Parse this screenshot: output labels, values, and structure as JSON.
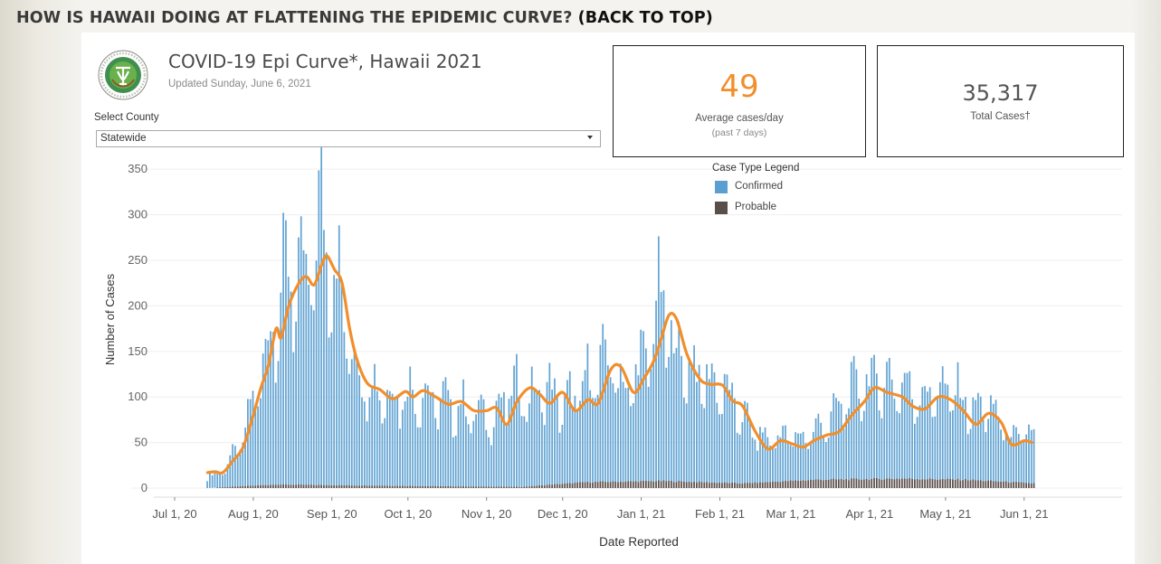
{
  "page": {
    "heading": "HOW IS HAWAII DOING AT FLATTENING THE EPIDEMIC CURVE?",
    "back_link": "(BACK TO TOP)"
  },
  "header": {
    "title": "COVID-19 Epi Curve*, Hawaii 2021",
    "updated": "Updated Sunday, June 6, 2021",
    "logo_text": "HAWAII STATE DEPARTMENT OF HEALTH"
  },
  "filter": {
    "label": "Select County",
    "selected": "Statewide"
  },
  "kpis": {
    "avg_value": "49",
    "avg_label": "Average cases/day",
    "avg_sub": "(past 7 days)",
    "total_value": "35,317",
    "total_label": "Total Cases†"
  },
  "colors": {
    "confirmed": "#5b9fd1",
    "probable": "#5a4e4b",
    "average_line": "#f28e2b",
    "avg_value": "#f28e2b"
  },
  "chart_data": {
    "type": "bar",
    "xlabel": "Date Reported",
    "ylabel": "Number of Cases",
    "x_ticks": [
      "Jul 1, 20",
      "Aug 1, 20",
      "Sep 1, 20",
      "Oct 1, 20",
      "Nov 1, 20",
      "Dec 1, 20",
      "Jan 1, 21",
      "Feb 1, 21",
      "Mar 1, 21",
      "Apr 1, 21",
      "May 1, 21",
      "Jun 1, 21"
    ],
    "y_ticks": [
      0,
      50,
      100,
      150,
      200,
      250,
      300,
      350
    ],
    "ylim": [
      0,
      370
    ],
    "x_range": [
      "2020-06-26",
      "2021-06-20"
    ],
    "legend": {
      "title": "Case Type Legend",
      "items": [
        "Confirmed",
        "Probable"
      ],
      "position": "top-center"
    },
    "series": [
      {
        "name": "Confirmed",
        "kind": "bar",
        "stacked": true,
        "anchors": [
          [
            "2020-07-14",
            12
          ],
          [
            "2020-07-20",
            18
          ],
          [
            "2020-07-26",
            40
          ],
          [
            "2020-07-30",
            70
          ],
          [
            "2020-08-03",
            110
          ],
          [
            "2020-08-07",
            150
          ],
          [
            "2020-08-10",
            190
          ],
          [
            "2020-08-13",
            215
          ],
          [
            "2020-08-16",
            230
          ],
          [
            "2020-08-19",
            220
          ],
          [
            "2020-08-22",
            210
          ],
          [
            "2020-08-25",
            250
          ],
          [
            "2020-08-28",
            285
          ],
          [
            "2020-09-01",
            250
          ],
          [
            "2020-09-04",
            210
          ],
          [
            "2020-09-07",
            170
          ],
          [
            "2020-09-10",
            135
          ],
          [
            "2020-09-15",
            110
          ],
          [
            "2020-09-22",
            100
          ],
          [
            "2020-09-30",
            100
          ],
          [
            "2020-10-10",
            95
          ],
          [
            "2020-10-20",
            85
          ],
          [
            "2020-10-28",
            80
          ],
          [
            "2020-11-03",
            70
          ],
          [
            "2020-11-10",
            105
          ],
          [
            "2020-11-15",
            100
          ],
          [
            "2020-11-20",
            95
          ],
          [
            "2020-11-25",
            105
          ],
          [
            "2020-12-01",
            85
          ],
          [
            "2020-12-05",
            90
          ],
          [
            "2020-12-10",
            105
          ],
          [
            "2020-12-16",
            125
          ],
          [
            "2020-12-21",
            130
          ],
          [
            "2020-12-26",
            95
          ],
          [
            "2020-12-31",
            120
          ],
          [
            "2021-01-05",
            150
          ],
          [
            "2021-01-09",
            200
          ],
          [
            "2021-01-13",
            150
          ],
          [
            "2021-01-18",
            130
          ],
          [
            "2021-01-24",
            115
          ],
          [
            "2021-01-28",
            110
          ],
          [
            "2021-02-03",
            100
          ],
          [
            "2021-02-09",
            75
          ],
          [
            "2021-02-15",
            55
          ],
          [
            "2021-02-20",
            45
          ],
          [
            "2021-02-26",
            50
          ],
          [
            "2021-03-05",
            45
          ],
          [
            "2021-03-12",
            55
          ],
          [
            "2021-03-17",
            65
          ],
          [
            "2021-03-24",
            90
          ],
          [
            "2021-03-31",
            105
          ],
          [
            "2021-04-07",
            105
          ],
          [
            "2021-04-14",
            100
          ],
          [
            "2021-04-21",
            90
          ],
          [
            "2021-04-28",
            95
          ],
          [
            "2021-05-05",
            95
          ],
          [
            "2021-05-12",
            75
          ],
          [
            "2021-05-18",
            80
          ],
          [
            "2021-05-24",
            60
          ],
          [
            "2021-05-28",
            45
          ],
          [
            "2021-06-01",
            55
          ],
          [
            "2021-06-05",
            50
          ]
        ]
      },
      {
        "name": "Probable",
        "kind": "bar",
        "stacked": true,
        "anchors": [
          [
            "2020-07-14",
            0
          ],
          [
            "2020-08-10",
            3
          ],
          [
            "2020-09-20",
            2
          ],
          [
            "2020-11-15",
            1
          ],
          [
            "2020-12-10",
            5
          ],
          [
            "2021-01-10",
            6
          ],
          [
            "2021-02-10",
            4
          ],
          [
            "2021-03-10",
            7
          ],
          [
            "2021-04-15",
            8
          ],
          [
            "2021-05-10",
            7
          ],
          [
            "2021-06-05",
            4
          ]
        ]
      },
      {
        "name": "7-day average",
        "kind": "line",
        "points": [
          [
            "2020-07-14",
            17
          ],
          [
            "2020-07-17",
            18
          ],
          [
            "2020-07-20",
            17
          ],
          [
            "2020-07-24",
            30
          ],
          [
            "2020-07-28",
            45
          ],
          [
            "2020-08-01",
            80
          ],
          [
            "2020-08-04",
            110
          ],
          [
            "2020-08-07",
            135
          ],
          [
            "2020-08-10",
            175
          ],
          [
            "2020-08-12",
            165
          ],
          [
            "2020-08-15",
            200
          ],
          [
            "2020-08-19",
            225
          ],
          [
            "2020-08-22",
            232
          ],
          [
            "2020-08-25",
            223
          ],
          [
            "2020-08-28",
            245
          ],
          [
            "2020-08-30",
            255
          ],
          [
            "2020-09-02",
            240
          ],
          [
            "2020-09-05",
            225
          ],
          [
            "2020-09-08",
            175
          ],
          [
            "2020-09-11",
            140
          ],
          [
            "2020-09-15",
            115
          ],
          [
            "2020-09-20",
            108
          ],
          [
            "2020-09-25",
            98
          ],
          [
            "2020-09-30",
            106
          ],
          [
            "2020-10-03",
            100
          ],
          [
            "2020-10-07",
            107
          ],
          [
            "2020-10-12",
            100
          ],
          [
            "2020-10-17",
            92
          ],
          [
            "2020-10-22",
            95
          ],
          [
            "2020-10-27",
            85
          ],
          [
            "2020-11-01",
            85
          ],
          [
            "2020-11-05",
            88
          ],
          [
            "2020-11-09",
            70
          ],
          [
            "2020-11-13",
            95
          ],
          [
            "2020-11-18",
            110
          ],
          [
            "2020-11-22",
            103
          ],
          [
            "2020-11-26",
            93
          ],
          [
            "2020-12-01",
            105
          ],
          [
            "2020-12-06",
            85
          ],
          [
            "2020-12-11",
            97
          ],
          [
            "2020-12-15",
            93
          ],
          [
            "2020-12-20",
            130
          ],
          [
            "2020-12-24",
            133
          ],
          [
            "2020-12-29",
            105
          ],
          [
            "2021-01-02",
            120
          ],
          [
            "2021-01-06",
            140
          ],
          [
            "2021-01-09",
            165
          ],
          [
            "2021-01-12",
            190
          ],
          [
            "2021-01-15",
            185
          ],
          [
            "2021-01-19",
            147
          ],
          [
            "2021-01-24",
            120
          ],
          [
            "2021-01-28",
            114
          ],
          [
            "2021-02-02",
            113
          ],
          [
            "2021-02-06",
            96
          ],
          [
            "2021-02-10",
            90
          ],
          [
            "2021-02-15",
            62
          ],
          [
            "2021-02-20",
            43
          ],
          [
            "2021-02-25",
            52
          ],
          [
            "2021-03-02",
            48
          ],
          [
            "2021-03-06",
            45
          ],
          [
            "2021-03-10",
            52
          ],
          [
            "2021-03-15",
            58
          ],
          [
            "2021-03-20",
            62
          ],
          [
            "2021-03-25",
            80
          ],
          [
            "2021-03-30",
            95
          ],
          [
            "2021-04-03",
            110
          ],
          [
            "2021-04-08",
            105
          ],
          [
            "2021-04-14",
            100
          ],
          [
            "2021-04-18",
            90
          ],
          [
            "2021-04-23",
            87
          ],
          [
            "2021-04-28",
            100
          ],
          [
            "2021-05-03",
            97
          ],
          [
            "2021-05-08",
            85
          ],
          [
            "2021-05-13",
            70
          ],
          [
            "2021-05-18",
            82
          ],
          [
            "2021-05-23",
            72
          ],
          [
            "2021-05-27",
            48
          ],
          [
            "2021-06-01",
            52
          ],
          [
            "2021-06-04",
            50
          ]
        ]
      }
    ]
  }
}
